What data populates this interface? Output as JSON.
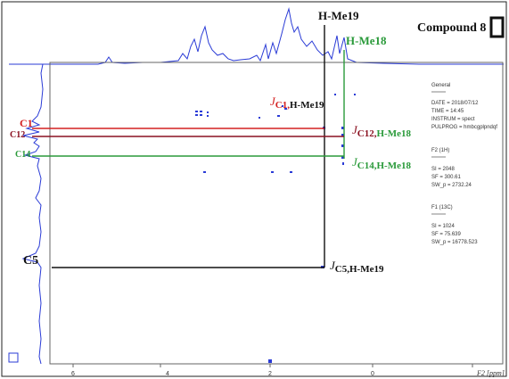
{
  "figure": {
    "compound_label": "Compound 8",
    "axis_unit_label": "F2 [ppm]",
    "x_ticks": [
      "6",
      "4",
      "2",
      "0"
    ],
    "colors": {
      "spectrum": "#2a3bd6",
      "c1": "#d42020",
      "c12": "#8a1020",
      "c14": "#2a9a3a",
      "c5": "#111111",
      "hme18": "#2a9a3a",
      "hme19": "#111111"
    },
    "top_labels": {
      "h_me19": "H-Me19",
      "h_me18": "H-Me18"
    },
    "carbon_labels": {
      "c1": "C1",
      "c12": "C12",
      "c14": "C14",
      "c5": "C5"
    },
    "couplings": {
      "c1": {
        "j": "J",
        "sub": "C1,",
        "rest": "H-Me19"
      },
      "c12": {
        "j": "J",
        "sub": "C12,",
        "rest": "H-Me18"
      },
      "c14": {
        "j": "J",
        "sub": "C14,",
        "rest": "H-Me18"
      },
      "c5": {
        "j": "J",
        "sub": "C5,H-Me19",
        "rest": ""
      }
    },
    "params": {
      "general_title": "General",
      "general": [
        "DATE = 2018/07/12",
        "TIME = 14:45",
        "INSTRUM = spect",
        "PULPROG = hmbcgplpndqf"
      ],
      "f2_title": "F2 (1H)",
      "f2": [
        "SI = 2048",
        "SF = 300.61",
        "SW_p = 2732.24"
      ],
      "f1_title": "F1 (13C)",
      "f1": [
        "SI = 1024",
        "SF = 75.639",
        "SW_p = 16778.523"
      ]
    }
  }
}
